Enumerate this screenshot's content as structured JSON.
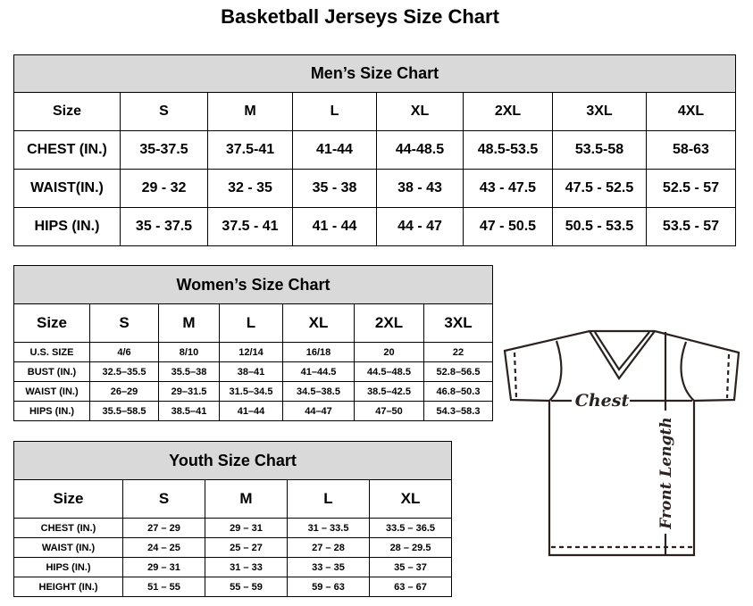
{
  "title": "Basketball Jerseys Size Chart",
  "men": {
    "title": "Men’s Size Chart",
    "sizes": [
      "Size",
      "S",
      "M",
      "L",
      "XL",
      "2XL",
      "3XL",
      "4XL"
    ],
    "rows": [
      [
        "CHEST (IN.)",
        "35-37.5",
        "37.5-41",
        "41-44",
        "44-48.5",
        "48.5-53.5",
        "53.5-58",
        "58-63"
      ],
      [
        "WAIST(IN.)",
        "29 - 32",
        "32 - 35",
        "35 - 38",
        "38 - 43",
        "43 - 47.5",
        "47.5 - 52.5",
        "52.5 - 57"
      ],
      [
        "HIPS (IN.)",
        "35 - 37.5",
        "37.5 - 41",
        "41 - 44",
        "44 - 47",
        "47 - 50.5",
        "50.5 - 53.5",
        "53.5 - 57"
      ]
    ]
  },
  "women": {
    "title": "Women’s Size Chart",
    "sizes": [
      "Size",
      "S",
      "M",
      "L",
      "XL",
      "2XL",
      "3XL"
    ],
    "rows": [
      [
        "U.S.  SIZE",
        "4/6",
        "8/10",
        "12/14",
        "16/18",
        "20",
        "22"
      ],
      [
        "BUST  (IN.)",
        "32.5–35.5",
        "35.5–38",
        "38–41",
        "41–44.5",
        "44.5–48.5",
        "52.8–56.5"
      ],
      [
        "WAIST  (IN.)",
        "26–29",
        "29–31.5",
        "31.5–34.5",
        "34.5–38.5",
        "38.5–42.5",
        "46.8–50.3"
      ],
      [
        "HIPS  (IN.)",
        "35.5–58.5",
        "38.5–41",
        "41–44",
        "44–47",
        "47–50",
        "54.3–58.3"
      ]
    ]
  },
  "youth": {
    "title": "Youth Size Chart",
    "sizes": [
      "Size",
      "S",
      "M",
      "L",
      "XL"
    ],
    "rows": [
      [
        "CHEST  (IN.)",
        "27  –  29",
        "29  –  31",
        "31  –  33.5",
        "33.5  –  36.5"
      ],
      [
        "WAIST  (IN.)",
        "24  –  25",
        "25  –  27",
        "27  –  28",
        "28  –  29.5"
      ],
      [
        "HIPS  (IN.)",
        "29  –  31",
        "31  –  33",
        "33  –  35",
        "35  –  37"
      ],
      [
        "HEIGHT  (IN.)",
        "51  –  55",
        "55  –  59",
        "59  –  63",
        "63  –  67"
      ]
    ]
  },
  "diagram": {
    "chest_label": "Chest",
    "length_label": "Front Length"
  }
}
